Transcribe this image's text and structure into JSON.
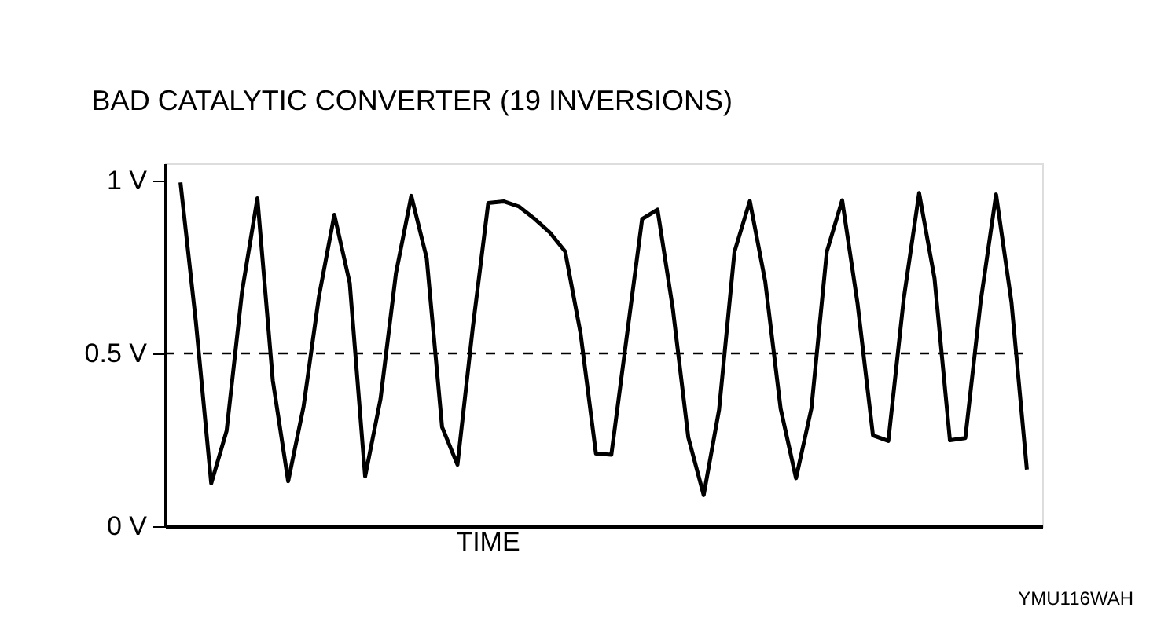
{
  "chart_data": {
    "type": "line",
    "title": "BAD CATALYTIC CONVERTER (19 INVERSIONS)",
    "xlabel": "TIME",
    "categories": [
      null,
      null,
      null,
      null,
      null,
      null,
      null,
      null,
      null,
      null,
      null,
      null,
      null,
      null,
      null,
      null,
      null,
      null,
      null,
      null,
      null,
      null,
      null,
      null,
      null,
      null,
      null,
      null,
      null,
      null,
      null,
      null,
      null,
      null,
      null,
      null,
      null,
      null,
      null,
      null,
      null,
      null,
      null,
      null,
      null,
      null,
      null,
      null,
      null,
      null,
      null,
      null,
      null,
      null,
      null,
      null
    ],
    "series": [
      {
        "color": "#000000",
        "values": [
          0.995,
          0.592,
          0.124,
          0.276,
          0.678,
          0.949,
          0.422,
          0.13,
          0.346,
          0.665,
          0.901,
          0.704,
          0.144,
          0.368,
          0.731,
          0.956,
          0.776,
          0.287,
          0.178,
          0.576,
          0.935,
          0.94,
          0.925,
          0.89,
          0.85,
          0.795,
          0.558,
          0.21,
          0.207,
          0.548,
          0.889,
          0.916,
          0.628,
          0.257,
          0.09,
          0.337,
          0.794,
          0.941,
          0.708,
          0.34,
          0.139,
          0.341,
          0.794,
          0.943,
          0.644,
          0.263,
          0.247,
          0.658,
          0.964,
          0.717,
          0.249,
          0.255,
          0.651,
          0.96,
          0.648,
          0.164
        ]
      }
    ],
    "ylim": [
      0,
      1.05
    ],
    "yticks": [
      {
        "value": 0,
        "label": "0 V"
      },
      {
        "value": 0.5,
        "label": "0.5 V"
      },
      {
        "value": 1,
        "label": "1 V"
      }
    ],
    "tick_labels": "y",
    "grid": false,
    "legend": false,
    "marker": "none",
    "line_style": "solid",
    "ref_lines": [
      {
        "axis": "y",
        "value": 0.5,
        "line_style": "dashed",
        "color": "#000000"
      }
    ],
    "annotations": [
      "YMU116WAH"
    ]
  }
}
